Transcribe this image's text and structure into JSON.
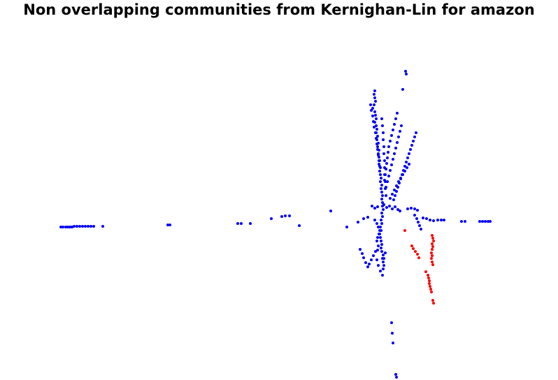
{
  "title": "Non overlapping communities from Kernighan-Lin for amazon",
  "chart_data": {
    "type": "scatter",
    "title": "Non overlapping communities from Kernighan-Lin for amazon",
    "xlabel": "",
    "ylabel": "",
    "axes_visible": false,
    "grid": false,
    "series": [
      {
        "color": "#0000ff",
        "points": [
          [
            87,
            325
          ],
          [
            90,
            325
          ],
          [
            94,
            325
          ],
          [
            97,
            325
          ],
          [
            100,
            325
          ],
          [
            103,
            325
          ],
          [
            106,
            324
          ],
          [
            110,
            324
          ],
          [
            114,
            324
          ],
          [
            118,
            324
          ],
          [
            122,
            324
          ],
          [
            126,
            324
          ],
          [
            130,
            324
          ],
          [
            134,
            324
          ],
          [
            147,
            324
          ],
          [
            240,
            322
          ],
          [
            243,
            322
          ],
          [
            340,
            320
          ],
          [
            345,
            320
          ],
          [
            358,
            320
          ],
          [
            388,
            313
          ],
          [
            403,
            310
          ],
          [
            408,
            309
          ],
          [
            414,
            309
          ],
          [
            428,
            323
          ],
          [
            473,
            302
          ],
          [
            496,
            325
          ],
          [
            512,
            318
          ],
          [
            520,
            313
          ],
          [
            526,
            311
          ],
          [
            515,
            357
          ],
          [
            518,
            363
          ],
          [
            520,
            369
          ],
          [
            523,
            376
          ],
          [
            526,
            382
          ],
          [
            528,
            378
          ],
          [
            531,
            372
          ],
          [
            534,
            366
          ],
          [
            537,
            360
          ],
          [
            539,
            372
          ],
          [
            541,
            380
          ],
          [
            544,
            388
          ],
          [
            547,
            394
          ],
          [
            549,
            370
          ],
          [
            551,
            362
          ],
          [
            536,
            130
          ],
          [
            535,
            135
          ],
          [
            536,
            140
          ],
          [
            537,
            145
          ],
          [
            535,
            150
          ],
          [
            533,
            155
          ],
          [
            536,
            160
          ],
          [
            537,
            165
          ],
          [
            538,
            170
          ],
          [
            536,
            175
          ],
          [
            538,
            180
          ],
          [
            539,
            185
          ],
          [
            538,
            190
          ],
          [
            540,
            195
          ],
          [
            539,
            200
          ],
          [
            541,
            205
          ],
          [
            540,
            210
          ],
          [
            542,
            215
          ],
          [
            541,
            220
          ],
          [
            542,
            225
          ],
          [
            543,
            230
          ],
          [
            542,
            235
          ],
          [
            544,
            240
          ],
          [
            543,
            245
          ],
          [
            544,
            250
          ],
          [
            545,
            255
          ],
          [
            544,
            260
          ],
          [
            546,
            265
          ],
          [
            545,
            270
          ],
          [
            546,
            275
          ],
          [
            547,
            280
          ],
          [
            546,
            285
          ],
          [
            547,
            290
          ],
          [
            547,
            295
          ],
          [
            548,
            300
          ],
          [
            546,
            305
          ],
          [
            547,
            310
          ],
          [
            545,
            315
          ],
          [
            546,
            320
          ],
          [
            544,
            325
          ],
          [
            545,
            330
          ],
          [
            543,
            335
          ],
          [
            544,
            340
          ],
          [
            545,
            345
          ],
          [
            546,
            350
          ],
          [
            545,
            355
          ],
          [
            546,
            360
          ],
          [
            548,
            365
          ],
          [
            547,
            370
          ],
          [
            548,
            375
          ],
          [
            549,
            380
          ],
          [
            548,
            385
          ],
          [
            530,
            150
          ],
          [
            531,
            158
          ],
          [
            533,
            166
          ],
          [
            534,
            174
          ],
          [
            535,
            182
          ],
          [
            537,
            190
          ],
          [
            538,
            198
          ],
          [
            539,
            206
          ],
          [
            540,
            214
          ],
          [
            541,
            222
          ],
          [
            542,
            230
          ],
          [
            543,
            238
          ],
          [
            546,
            170
          ],
          [
            547,
            180
          ],
          [
            548,
            190
          ],
          [
            548,
            200
          ],
          [
            549,
            210
          ],
          [
            549,
            220
          ],
          [
            550,
            230
          ],
          [
            550,
            240
          ],
          [
            550,
            250
          ],
          [
            551,
            260
          ],
          [
            551,
            270
          ],
          [
            552,
            280
          ],
          [
            568,
            162
          ],
          [
            566,
            170
          ],
          [
            564,
            178
          ],
          [
            562,
            186
          ],
          [
            560,
            194
          ],
          [
            558,
            202
          ],
          [
            556,
            210
          ],
          [
            555,
            218
          ],
          [
            554,
            226
          ],
          [
            553,
            234
          ],
          [
            552,
            242
          ],
          [
            551,
            250
          ],
          [
            550,
            258
          ],
          [
            574,
            180
          ],
          [
            572,
            188
          ],
          [
            570,
            196
          ],
          [
            568,
            204
          ],
          [
            566,
            212
          ],
          [
            564,
            220
          ],
          [
            562,
            228
          ],
          [
            560,
            236
          ],
          [
            558,
            244
          ],
          [
            556,
            252
          ],
          [
            554,
            260
          ],
          [
            552,
            268
          ],
          [
            595,
            190
          ],
          [
            593,
            196
          ],
          [
            591,
            202
          ],
          [
            589,
            208
          ],
          [
            587,
            214
          ],
          [
            585,
            220
          ],
          [
            583,
            226
          ],
          [
            581,
            232
          ],
          [
            579,
            238
          ],
          [
            577,
            244
          ],
          [
            575,
            250
          ],
          [
            573,
            256
          ],
          [
            571,
            262
          ],
          [
            569,
            268
          ],
          [
            567,
            274
          ],
          [
            565,
            280
          ],
          [
            563,
            286
          ],
          [
            585,
            235
          ],
          [
            582,
            240
          ],
          [
            579,
            245
          ],
          [
            576,
            250
          ],
          [
            573,
            255
          ],
          [
            570,
            260
          ],
          [
            567,
            266
          ],
          [
            564,
            272
          ],
          [
            561,
            278
          ],
          [
            558,
            284
          ],
          [
            580,
            102
          ],
          [
            581,
            106
          ],
          [
            576,
            128
          ],
          [
            532,
            295
          ],
          [
            536,
            298
          ],
          [
            540,
            296
          ],
          [
            549,
            293
          ],
          [
            553,
            297
          ],
          [
            557,
            295
          ],
          [
            561,
            299
          ],
          [
            565,
            296
          ],
          [
            569,
            300
          ],
          [
            572,
            302
          ],
          [
            583,
            299
          ],
          [
            588,
            298
          ],
          [
            593,
            299
          ],
          [
            597,
            301
          ],
          [
            536,
            315
          ],
          [
            539,
            320
          ],
          [
            541,
            325
          ],
          [
            543,
            330
          ],
          [
            542,
            335
          ],
          [
            540,
            340
          ],
          [
            539,
            345
          ],
          [
            541,
            352
          ],
          [
            540,
            358
          ],
          [
            593,
            308
          ],
          [
            596,
            313
          ],
          [
            598,
            318
          ],
          [
            600,
            323
          ],
          [
            602,
            328
          ],
          [
            605,
            312
          ],
          [
            610,
            313
          ],
          [
            615,
            315
          ],
          [
            620,
            316
          ],
          [
            626,
            315
          ],
          [
            631,
            315
          ],
          [
            635,
            315
          ],
          [
            660,
            317
          ],
          [
            665,
            317
          ],
          [
            686,
            317
          ],
          [
            690,
            317
          ],
          [
            694,
            317
          ],
          [
            698,
            317
          ],
          [
            701,
            317
          ],
          [
            560,
            462
          ],
          [
            561,
            477
          ],
          [
            562,
            491
          ],
          [
            566,
            536
          ],
          [
            567,
            540
          ]
        ]
      },
      {
        "color": "#ff0000",
        "points": [
          [
            579,
            330
          ],
          [
            589,
            352
          ],
          [
            591,
            356
          ],
          [
            594,
            360
          ],
          [
            597,
            364
          ],
          [
            599,
            369
          ],
          [
            618,
            337
          ],
          [
            619,
            341
          ],
          [
            620,
            345
          ],
          [
            618,
            349
          ],
          [
            619,
            353
          ],
          [
            618,
            357
          ],
          [
            617,
            362
          ],
          [
            618,
            366
          ],
          [
            617,
            370
          ],
          [
            618,
            375
          ],
          [
            619,
            379
          ],
          [
            609,
            389
          ],
          [
            612,
            394
          ],
          [
            613,
            398
          ],
          [
            614,
            402
          ],
          [
            614,
            406
          ],
          [
            615,
            410
          ],
          [
            616,
            414
          ],
          [
            617,
            418
          ],
          [
            619,
            430
          ],
          [
            620,
            434
          ]
        ]
      }
    ]
  }
}
